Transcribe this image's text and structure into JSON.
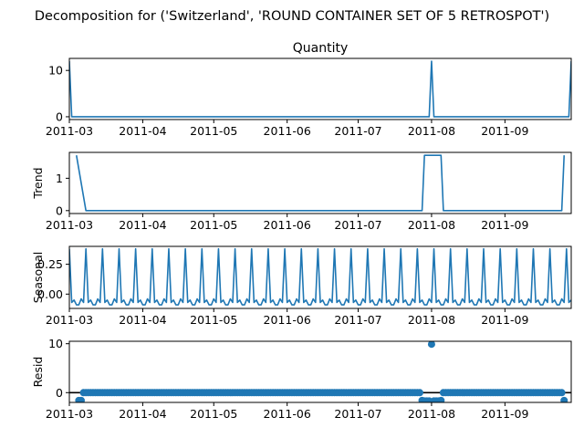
{
  "figure": {
    "suptitle": "Decomposition for ('Switzerland', 'ROUND CONTAINER SET OF 5 RETROSPOT')",
    "series_color": "#1f77b4"
  },
  "chart_data": [
    {
      "type": "line",
      "title": "Quantity",
      "ylabel": "",
      "x_range": [
        "2011-03-01",
        "2011-09-29"
      ],
      "x_ticks": [
        "2011-03",
        "2011-04",
        "2011-05",
        "2011-06",
        "2011-07",
        "2011-08",
        "2011-09"
      ],
      "y_ticks": [
        0,
        10
      ],
      "ylim": [
        -0.6,
        12.6
      ],
      "series": [
        {
          "x": [
            "2011-03-01",
            "2011-03-02",
            "2011-07-31",
            "2011-08-01",
            "2011-08-02",
            "2011-09-28",
            "2011-09-29"
          ],
          "values": [
            12,
            0,
            0,
            12,
            0,
            0,
            12
          ]
        }
      ]
    },
    {
      "type": "line",
      "title": "",
      "ylabel": "Trend",
      "x_range": [
        "2011-03-01",
        "2011-09-29"
      ],
      "x_ticks": [
        "2011-03",
        "2011-04",
        "2011-05",
        "2011-06",
        "2011-07",
        "2011-08",
        "2011-09"
      ],
      "y_ticks": [
        0,
        1
      ],
      "ylim": [
        -0.09,
        1.8
      ],
      "series": [
        {
          "x": [
            "2011-03-04",
            "2011-03-08",
            "2011-07-28",
            "2011-07-29",
            "2011-08-05",
            "2011-08-06",
            "2011-09-25",
            "2011-09-26"
          ],
          "values": [
            1.71,
            0,
            0,
            1.71,
            1.71,
            0,
            0,
            1.71
          ]
        }
      ]
    },
    {
      "type": "line",
      "title": "",
      "ylabel": "Seasonal",
      "x_range": [
        "2011-03-01",
        "2011-09-29"
      ],
      "x_ticks": [
        "2011-03",
        "2011-04",
        "2011-05",
        "2011-06",
        "2011-07",
        "2011-08",
        "2011-09"
      ],
      "y_ticks": [
        0.0,
        0.25
      ],
      "y_tick_labels": [
        "0.00",
        "0.25"
      ],
      "ylim": [
        -0.12,
        0.4
      ],
      "period_days": 7,
      "series": [
        {
          "start": "2011-03-01",
          "cycle": [
            0.38,
            -0.07,
            -0.05,
            -0.09,
            -0.09,
            -0.04,
            -0.07
          ]
        }
      ]
    },
    {
      "type": "scatter",
      "title": "",
      "ylabel": "Resid",
      "x_range": [
        "2011-03-01",
        "2011-09-29"
      ],
      "x_ticks": [
        "2011-03",
        "2011-04",
        "2011-05",
        "2011-06",
        "2011-07",
        "2011-08",
        "2011-09"
      ],
      "y_ticks": [
        0,
        10
      ],
      "ylim": [
        -2,
        10.5
      ],
      "baseline": 0,
      "points": [
        {
          "x": "2011-03-05",
          "y": -1.6
        },
        {
          "x": "2011-03-06",
          "y": -1.6
        },
        {
          "x": "2011-07-28",
          "y": -1.6
        },
        {
          "x": "2011-07-29",
          "y": -1.7
        },
        {
          "x": "2011-07-30",
          "y": -1.7
        },
        {
          "x": "2011-07-31",
          "y": -1.7
        },
        {
          "x": "2011-08-01",
          "y": 9.9
        },
        {
          "x": "2011-08-02",
          "y": -1.7
        },
        {
          "x": "2011-08-03",
          "y": -1.7
        },
        {
          "x": "2011-08-04",
          "y": -1.7
        },
        {
          "x": "2011-08-05",
          "y": -1.6
        },
        {
          "x": "2011-09-26",
          "y": -1.6
        }
      ],
      "fill_range": [
        "2011-03-07",
        "2011-09-25"
      ],
      "fill_value": 0
    }
  ]
}
